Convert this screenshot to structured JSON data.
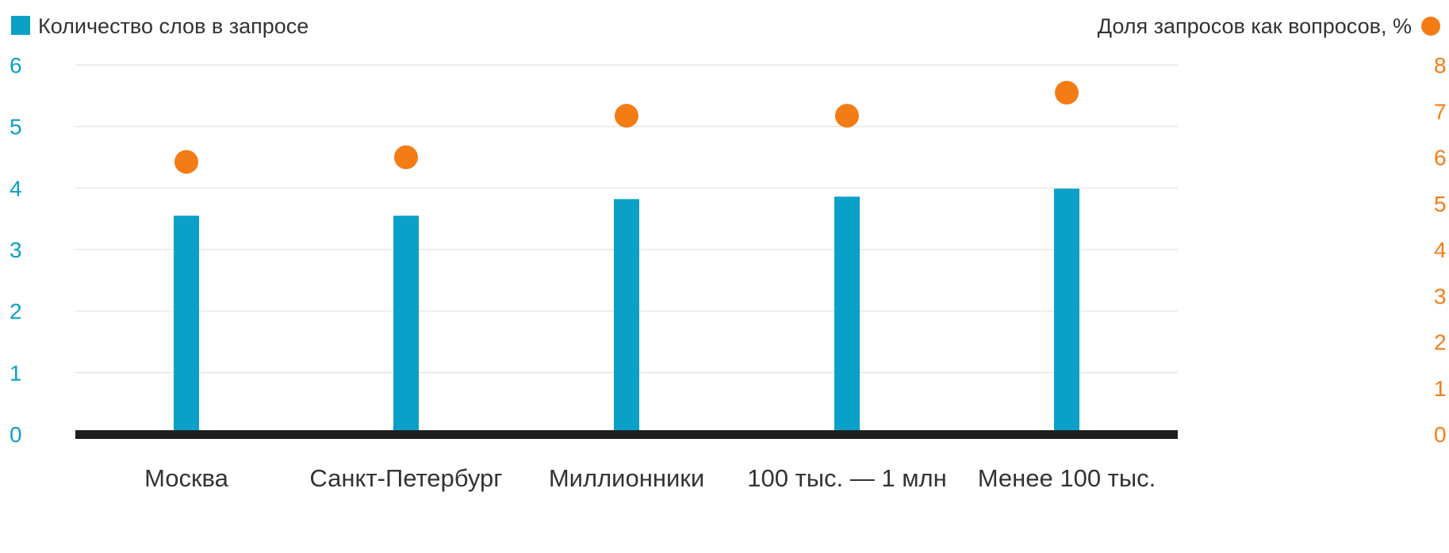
{
  "colors": {
    "bar": "#0aa0c8",
    "dot": "#f47c14",
    "axis": "#1e1e1e",
    "grid": "#e6e6e6",
    "text": "#333333"
  },
  "legend": {
    "left_label": "Количество слов в запросе",
    "right_label": "Доля запросов как вопросов, %"
  },
  "chart_data": {
    "type": "bar",
    "categories": [
      "Москва",
      "Санкт-Петербург",
      "Миллионники",
      "100 тыс. — 1 млн",
      "Менее 100 тыс."
    ],
    "series": [
      {
        "name": "Количество слов в запросе",
        "type": "bar",
        "axis": "left",
        "values": [
          3.55,
          3.55,
          3.82,
          3.86,
          3.99
        ]
      },
      {
        "name": "Доля запросов как вопросов, %",
        "type": "scatter",
        "axis": "right",
        "values": [
          5.9,
          6.0,
          6.9,
          6.9,
          7.4
        ]
      }
    ],
    "y_left": {
      "ticks": [
        "0",
        "1",
        "2",
        "3",
        "4",
        "5",
        "6"
      ],
      "range": [
        0,
        6
      ]
    },
    "y_right": {
      "ticks": [
        "0",
        "1",
        "2",
        "3",
        "4",
        "5",
        "6",
        "7",
        "8"
      ],
      "range": [
        0,
        8
      ]
    },
    "grid": true,
    "legend_position": "top"
  }
}
